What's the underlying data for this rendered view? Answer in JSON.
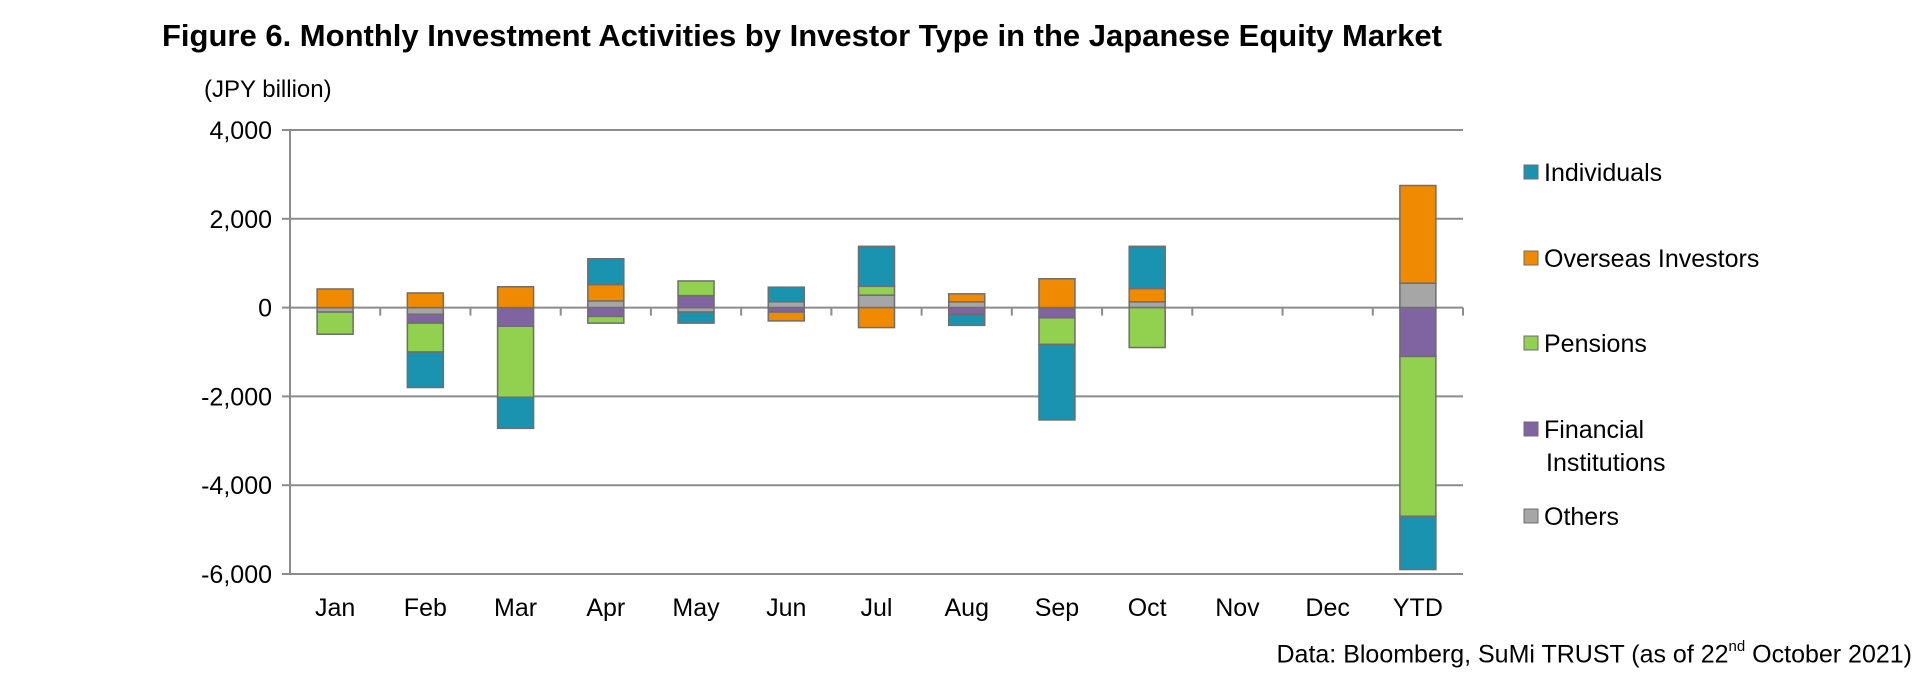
{
  "chart_data": {
    "type": "bar",
    "stacked": true,
    "title": "Figure 6. Monthly Investment Activities by Investor Type in the Japanese Equity Market",
    "ylabel": "(JPY billion)",
    "xlabel": "",
    "ylim": [
      -6000,
      4000
    ],
    "yticks": [
      4000,
      2000,
      0,
      -2000,
      -4000,
      -6000
    ],
    "ytick_labels": [
      "4,000",
      "2,000",
      "0",
      "-2,000",
      "-4,000",
      "-6,000"
    ],
    "grid": true,
    "legend_position": "right",
    "categories": [
      "Jan",
      "Feb",
      "Mar",
      "Apr",
      "May",
      "Jun",
      "Jul",
      "Aug",
      "Sep",
      "Oct",
      "Nov",
      "Dec",
      "YTD"
    ],
    "series": [
      {
        "name": "Others",
        "color": "#a6a6a6",
        "values": [
          -100,
          -150,
          0,
          150,
          -100,
          130,
          280,
          130,
          0,
          130,
          null,
          null,
          550
        ]
      },
      {
        "name": "Financial Institutions",
        "color": "#8064a2",
        "values": [
          0,
          -200,
          -420,
          -200,
          270,
          -100,
          0,
          -150,
          -230,
          0,
          null,
          null,
          -1100
        ]
      },
      {
        "name": "Pensions",
        "color": "#92d050",
        "values": [
          -500,
          -650,
          -1600,
          -150,
          330,
          0,
          200,
          0,
          -600,
          -900,
          null,
          null,
          -3600
        ]
      },
      {
        "name": "Overseas Investors",
        "color": "#f08a00",
        "values": [
          420,
          330,
          470,
          370,
          0,
          -200,
          -450,
          180,
          650,
          300,
          null,
          null,
          2200
        ]
      },
      {
        "name": "Individuals",
        "color": "#1a93b0",
        "values": [
          0,
          -800,
          -700,
          580,
          -250,
          330,
          900,
          -250,
          -1700,
          950,
          null,
          null,
          -1200
        ]
      }
    ],
    "legend_order": [
      "Individuals",
      "Overseas Investors",
      "Pensions",
      "Financial Institutions",
      "Others"
    ],
    "legend_labels": {
      "Individuals": [
        "Individuals"
      ],
      "Overseas Investors": [
        "Overseas Investors"
      ],
      "Pensions": [
        "Pensions"
      ],
      "Financial Institutions": [
        "Financial",
        "Institutions"
      ],
      "Others": [
        "Others"
      ]
    }
  },
  "source": {
    "prefix": "Data: Bloomberg, SuMi TRUST (as of 22",
    "sup": "nd",
    "suffix": " October 2021)"
  }
}
